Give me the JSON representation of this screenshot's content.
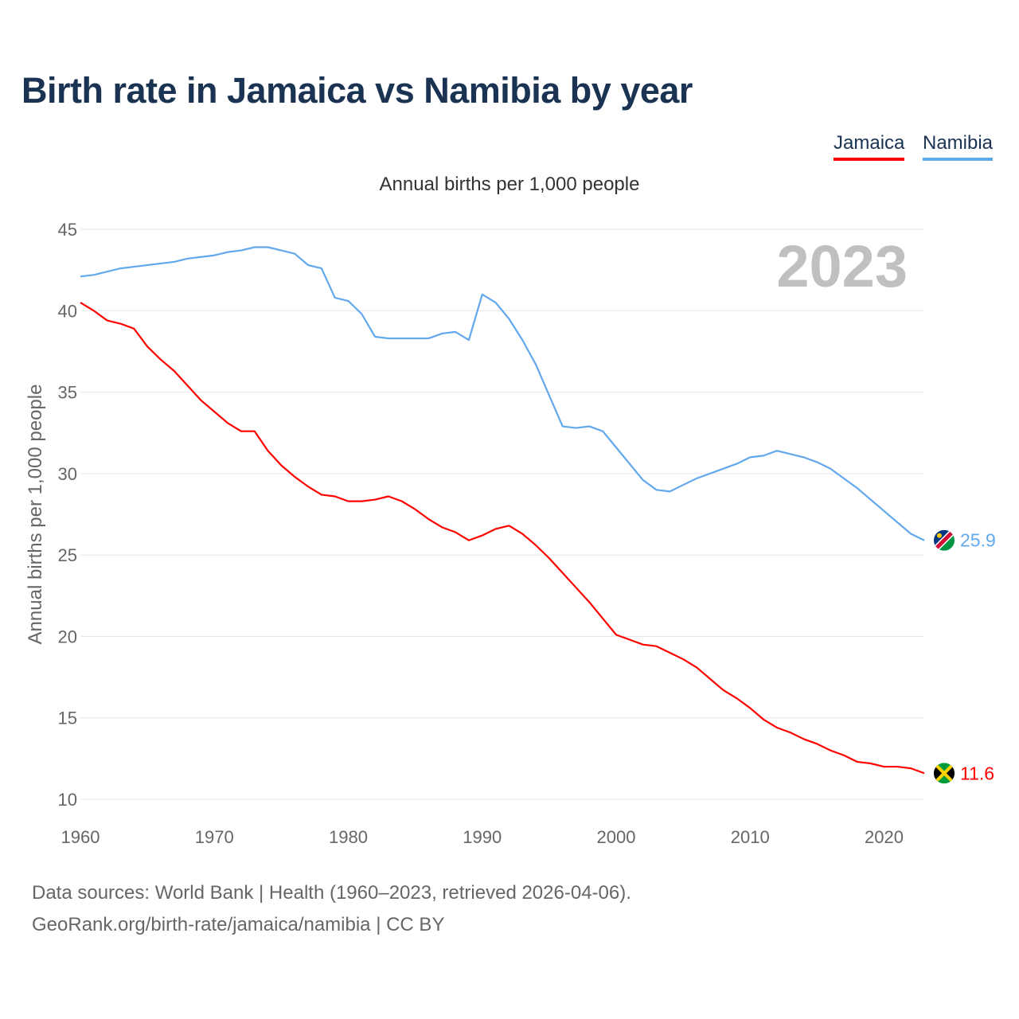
{
  "title": "Birth rate in Jamaica vs Namibia by year",
  "legend": [
    "Jamaica",
    "Namibia"
  ],
  "footer": {
    "line1": "Data sources: World Bank | Health (1960–2023, retrieved 2026-04-06).",
    "line2": "GeoRank.org/birth-rate/jamaica/namibia | CC BY"
  },
  "chart_data": {
    "type": "line",
    "title": "Birth rate in Jamaica vs Namibia by year",
    "subtitle": "Annual births per 1,000 people",
    "xlabel": "",
    "ylabel": "Annual births per 1,000 people",
    "year_label": "2023",
    "xlim": [
      1960,
      2023
    ],
    "ylim": [
      10,
      45
    ],
    "xticks": [
      "1960",
      "1970",
      "1980",
      "1990",
      "2000",
      "2010",
      "2020"
    ],
    "yticks": [
      "10",
      "15",
      "20",
      "25",
      "30",
      "35",
      "40",
      "45"
    ],
    "grid": true,
    "legend_position": "top-right",
    "x_start": 1960,
    "series": [
      {
        "name": "Jamaica",
        "color": "#ff0000",
        "end_label": "11.6",
        "values": [
          40.5,
          40.0,
          39.4,
          39.2,
          38.9,
          37.8,
          37.0,
          36.3,
          35.4,
          34.5,
          33.8,
          33.1,
          32.6,
          32.6,
          31.4,
          30.5,
          29.8,
          29.2,
          28.7,
          28.6,
          28.3,
          28.3,
          28.4,
          28.6,
          28.3,
          27.8,
          27.2,
          26.7,
          26.4,
          25.9,
          26.2,
          26.6,
          26.8,
          26.3,
          25.6,
          24.8,
          23.9,
          23.0,
          22.1,
          21.1,
          20.1,
          19.8,
          19.5,
          19.4,
          19.0,
          18.6,
          18.1,
          17.4,
          16.7,
          16.2,
          15.6,
          14.9,
          14.4,
          14.1,
          13.7,
          13.4,
          13.0,
          12.7,
          12.3,
          12.2,
          12.0,
          12.0,
          11.9,
          11.6
        ]
      },
      {
        "name": "Namibia",
        "color": "#62a8ec",
        "end_label": "25.9",
        "values": [
          42.1,
          42.2,
          42.4,
          42.6,
          42.7,
          42.8,
          42.9,
          43.0,
          43.2,
          43.3,
          43.4,
          43.6,
          43.7,
          43.9,
          43.9,
          43.7,
          43.5,
          42.8,
          42.6,
          40.8,
          40.6,
          39.8,
          38.4,
          38.3,
          38.3,
          38.3,
          38.3,
          38.6,
          38.7,
          38.2,
          41.0,
          40.5,
          39.5,
          38.2,
          36.7,
          34.8,
          32.9,
          32.8,
          32.9,
          32.6,
          31.6,
          30.6,
          29.6,
          29.0,
          28.9,
          29.3,
          29.7,
          30.0,
          30.3,
          30.6,
          31.0,
          31.1,
          31.4,
          31.2,
          31.0,
          30.7,
          30.3,
          29.7,
          29.1,
          28.4,
          27.7,
          27.0,
          26.3,
          25.9
        ]
      }
    ]
  }
}
